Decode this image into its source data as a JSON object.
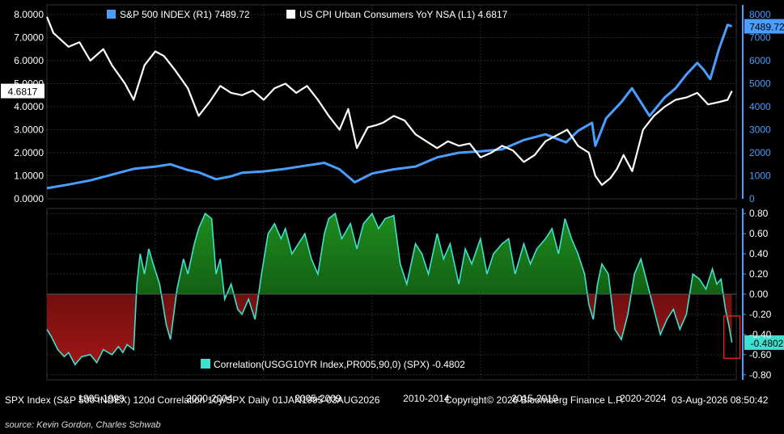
{
  "chart_data": [
    {
      "type": "line",
      "panel": "top",
      "series": [
        {
          "name": "S&P 500 INDEX",
          "axis": "R1",
          "last_value_label": "7489.72",
          "color": "#4a9eff",
          "x": [
            1995.0,
            1996.0,
            1997.0,
            1998.0,
            1999.0,
            2000.0,
            2000.7,
            2001.5,
            2002.0,
            2002.8,
            2003.5,
            2004.0,
            2005.0,
            2006.0,
            2007.0,
            2007.8,
            2008.5,
            2009.2,
            2010.0,
            2011.0,
            2012.0,
            2013.0,
            2014.0,
            2015.0,
            2016.0,
            2017.0,
            2018.0,
            2018.95,
            2019.5,
            2020.15,
            2020.3,
            2020.8,
            2021.5,
            2021.99,
            2022.8,
            2023.5,
            2024.0,
            2024.5,
            2025.0,
            2025.3,
            2025.6,
            2026.0,
            2026.4,
            2026.6
          ],
          "y": [
            460,
            620,
            800,
            1050,
            1300,
            1400,
            1500,
            1250,
            1150,
            850,
            980,
            1130,
            1190,
            1300,
            1450,
            1560,
            1280,
            720,
            1100,
            1280,
            1400,
            1800,
            2000,
            2060,
            2150,
            2550,
            2800,
            2450,
            2950,
            3300,
            2300,
            3500,
            4200,
            4800,
            3600,
            4400,
            4800,
            5400,
            5900,
            5600,
            5200,
            6500,
            7550,
            7489.72
          ]
        },
        {
          "name": "US CPI Urban Consumers YoY NSA",
          "axis": "L1",
          "last_value_label": "4.6817",
          "color": "#ffffff",
          "x": [
            1995.0,
            1995.3,
            1996.0,
            1996.5,
            1997.0,
            1997.6,
            1998.0,
            1998.6,
            1999.0,
            1999.5,
            2000.0,
            2000.4,
            2000.9,
            2001.5,
            2002.0,
            2002.5,
            2003.0,
            2003.5,
            2004.0,
            2004.5,
            2005.0,
            2005.5,
            2006.0,
            2006.5,
            2007.0,
            2007.5,
            2008.0,
            2008.5,
            2008.9,
            2009.3,
            2009.8,
            2010.2,
            2010.5,
            2011.0,
            2011.5,
            2012.0,
            2012.5,
            2013.0,
            2013.5,
            2014.0,
            2014.5,
            2015.0,
            2015.5,
            2016.0,
            2016.5,
            2017.0,
            2017.5,
            2018.0,
            2018.8,
            2019.0,
            2019.5,
            2020.0,
            2020.3,
            2020.6,
            2021.0,
            2021.3,
            2021.6,
            2022.0,
            2022.5,
            2023.0,
            2023.5,
            2024.0,
            2024.5,
            2025.0,
            2025.5,
            2026.0,
            2026.4,
            2026.6
          ],
          "y": [
            7.9,
            7.2,
            6.6,
            6.8,
            6.0,
            6.5,
            5.8,
            5.0,
            4.3,
            5.8,
            6.4,
            6.2,
            5.6,
            4.8,
            3.6,
            4.2,
            4.9,
            4.6,
            4.5,
            4.7,
            4.3,
            4.8,
            5.0,
            4.6,
            4.9,
            4.3,
            3.6,
            3.0,
            3.9,
            2.2,
            3.1,
            3.2,
            3.3,
            3.6,
            3.4,
            2.8,
            2.5,
            2.2,
            2.5,
            2.3,
            2.4,
            1.8,
            2.0,
            2.3,
            2.1,
            1.6,
            1.9,
            2.5,
            2.9,
            3.0,
            2.3,
            2.0,
            1.0,
            0.6,
            0.9,
            1.3,
            1.9,
            1.2,
            3.0,
            3.6,
            4.0,
            4.3,
            4.4,
            4.6,
            4.1,
            4.2,
            4.3,
            4.6817
          ]
        }
      ],
      "yaxis_left": {
        "ticks": [
          "8.0000",
          "7.0000",
          "6.0000",
          "5.0000",
          "4.0000",
          "3.0000",
          "2.0000",
          "1.0000",
          "0.0000"
        ],
        "range": [
          0,
          8
        ]
      },
      "yaxis_right": {
        "ticks": [
          "8000",
          "7000",
          "6000",
          "5000",
          "4000",
          "3000",
          "2000",
          "1000",
          "0"
        ],
        "range": [
          0,
          8000
        ]
      }
    },
    {
      "type": "area",
      "panel": "bottom",
      "series": [
        {
          "name": "Correlation(USGG10YR Index,PR005,90,0) (SPX)",
          "last_value_label": "-0.4802",
          "x": [
            1995.0,
            1995.2,
            1995.5,
            1995.8,
            1996.0,
            1996.3,
            1996.6,
            1997.0,
            1997.3,
            1997.6,
            1998.0,
            1998.3,
            1998.5,
            1998.7,
            1999.0,
            1999.15,
            1999.3,
            1999.5,
            1999.7,
            1999.9,
            2000.2,
            2000.5,
            2000.7,
            2001.0,
            2001.3,
            2001.5,
            2001.8,
            2002.0,
            2002.3,
            2002.6,
            2002.8,
            2003.0,
            2003.2,
            2003.5,
            2003.8,
            2004.0,
            2004.3,
            2004.6,
            2004.9,
            2005.2,
            2005.5,
            2005.8,
            2006.0,
            2006.3,
            2006.6,
            2006.9,
            2007.2,
            2007.5,
            2007.8,
            2008.0,
            2008.3,
            2008.6,
            2009.0,
            2009.3,
            2009.6,
            2010.0,
            2010.3,
            2010.6,
            2011.0,
            2011.3,
            2011.6,
            2012.0,
            2012.3,
            2012.6,
            2013.0,
            2013.3,
            2013.6,
            2014.0,
            2014.3,
            2014.6,
            2015.0,
            2015.3,
            2015.6,
            2016.0,
            2016.3,
            2016.6,
            2017.0,
            2017.3,
            2017.6,
            2018.0,
            2018.3,
            2018.6,
            2018.9,
            2019.2,
            2019.5,
            2019.8,
            2020.0,
            2020.2,
            2020.4,
            2020.6,
            2020.9,
            2021.2,
            2021.5,
            2021.8,
            2022.1,
            2022.4,
            2022.7,
            2023.0,
            2023.3,
            2023.6,
            2023.9,
            2024.2,
            2024.5,
            2024.8,
            2025.1,
            2025.4,
            2025.7,
            2025.9,
            2026.1,
            2026.3,
            2026.45,
            2026.6
          ],
          "y": [
            -0.35,
            -0.42,
            -0.55,
            -0.62,
            -0.58,
            -0.7,
            -0.62,
            -0.6,
            -0.68,
            -0.55,
            -0.6,
            -0.52,
            -0.58,
            -0.5,
            -0.55,
            0.1,
            0.4,
            0.2,
            0.45,
            0.3,
            0.1,
            -0.3,
            -0.45,
            0.05,
            0.35,
            0.2,
            0.5,
            0.65,
            0.8,
            0.75,
            0.2,
            0.35,
            -0.05,
            0.1,
            -0.15,
            -0.2,
            -0.05,
            -0.25,
            0.2,
            0.6,
            0.7,
            0.55,
            0.65,
            0.4,
            0.5,
            0.6,
            0.35,
            0.2,
            0.6,
            0.75,
            0.8,
            0.55,
            0.7,
            0.45,
            0.7,
            0.8,
            0.65,
            0.75,
            0.78,
            0.3,
            0.1,
            0.5,
            0.4,
            0.2,
            0.6,
            0.35,
            0.5,
            0.1,
            0.45,
            0.3,
            0.55,
            0.2,
            0.4,
            0.5,
            0.55,
            0.2,
            0.5,
            0.3,
            0.45,
            0.55,
            0.65,
            0.4,
            0.75,
            0.55,
            0.4,
            0.2,
            -0.1,
            -0.25,
            0.1,
            0.3,
            0.2,
            -0.35,
            -0.45,
            -0.2,
            0.2,
            0.35,
            0.1,
            -0.15,
            -0.4,
            -0.25,
            -0.15,
            -0.35,
            -0.2,
            0.2,
            0.15,
            0.05,
            0.25,
            0.1,
            0.15,
            -0.15,
            -0.3,
            -0.4802
          ]
        }
      ],
      "yaxis_right": {
        "ticks": [
          "0.80",
          "0.60",
          "0.40",
          "0.20",
          "0.00",
          "-0.20",
          "-0.40",
          "-0.60",
          "-0.80"
        ],
        "range": [
          -0.85,
          0.85
        ]
      },
      "fill_positive": "#1e8c1e",
      "fill_negative": "#a01616",
      "line_color": "#40e0d0"
    }
  ],
  "xaxis": {
    "labels": [
      "1995-1999",
      "2000-2004",
      "2005-2009",
      "2010-2014",
      "2015-2019",
      "2020-2024"
    ],
    "label_centers": [
      1997.5,
      2002.5,
      2007.5,
      2012.5,
      2017.5,
      2022.5
    ],
    "range": [
      1995,
      2026.8
    ]
  },
  "footer": {
    "title": "SPX Index (S&P 500 INDEX) 120d Correlation 10y/SPX Daily 01JAN1995-03AUG2026",
    "copyright": "Copyright© 2026 Bloomberg Finance L.P.",
    "timestamp": "03-Aug-2026 08:50:42",
    "source": "source: Kevin Gordon, Charles Schwab"
  },
  "colors": {
    "background": "#000000",
    "grid": "#2a2a2a",
    "axis_blue": "#4a9eff",
    "highlight": "#e02020"
  }
}
